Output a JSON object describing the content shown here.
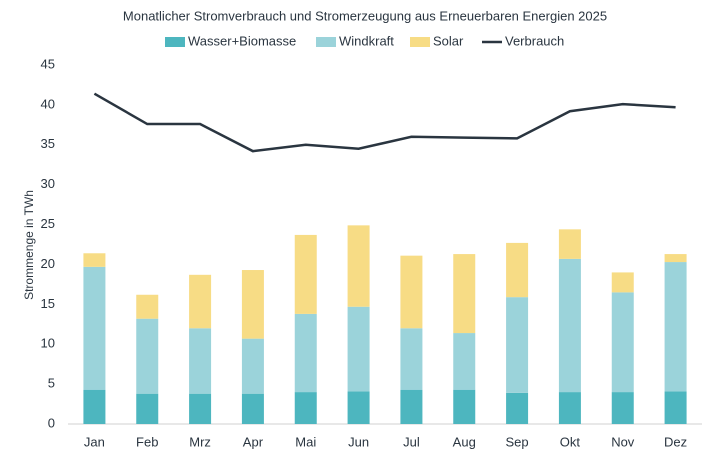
{
  "chart_data": {
    "type": "stacked_bar_line",
    "title": "Monatlicher Stromverbrauch und Stromerzeugung aus Erneuerbaren Energien 2025",
    "y_label": "Strommenge in TWh",
    "categories": [
      "Jan",
      "Feb",
      "Mrz",
      "Apr",
      "Mai",
      "Jun",
      "Jul",
      "Aug",
      "Sep",
      "Okt",
      "Nov",
      "Dez"
    ],
    "series": [
      {
        "name": "Wasser+Biomasse",
        "type": "bar",
        "color": "#4db6bf",
        "values": [
          4.3,
          3.8,
          3.8,
          3.8,
          4.0,
          4.1,
          4.3,
          4.3,
          3.9,
          4.0,
          4.0,
          4.1
        ]
      },
      {
        "name": "Windkraft",
        "type": "bar",
        "color": "#9bd3da",
        "values": [
          15.4,
          9.4,
          8.2,
          6.9,
          9.8,
          10.6,
          7.7,
          7.1,
          12.0,
          16.7,
          12.5,
          16.2
        ]
      },
      {
        "name": "Solar",
        "type": "bar",
        "color": "#f7dc85",
        "values": [
          1.7,
          3.0,
          6.7,
          8.6,
          9.9,
          10.2,
          9.1,
          9.9,
          6.8,
          3.7,
          2.5,
          1.0
        ]
      },
      {
        "name": "Verbrauch",
        "type": "line",
        "color": "#2a3540",
        "values": [
          41.4,
          37.6,
          37.6,
          34.2,
          35.0,
          34.5,
          36.0,
          35.9,
          35.8,
          39.2,
          40.1,
          39.7
        ]
      }
    ],
    "ylim": [
      0,
      45
    ],
    "yticks": [
      0,
      5,
      10,
      15,
      20,
      25,
      30,
      35,
      40,
      45
    ],
    "grid": false,
    "legend": "top"
  }
}
